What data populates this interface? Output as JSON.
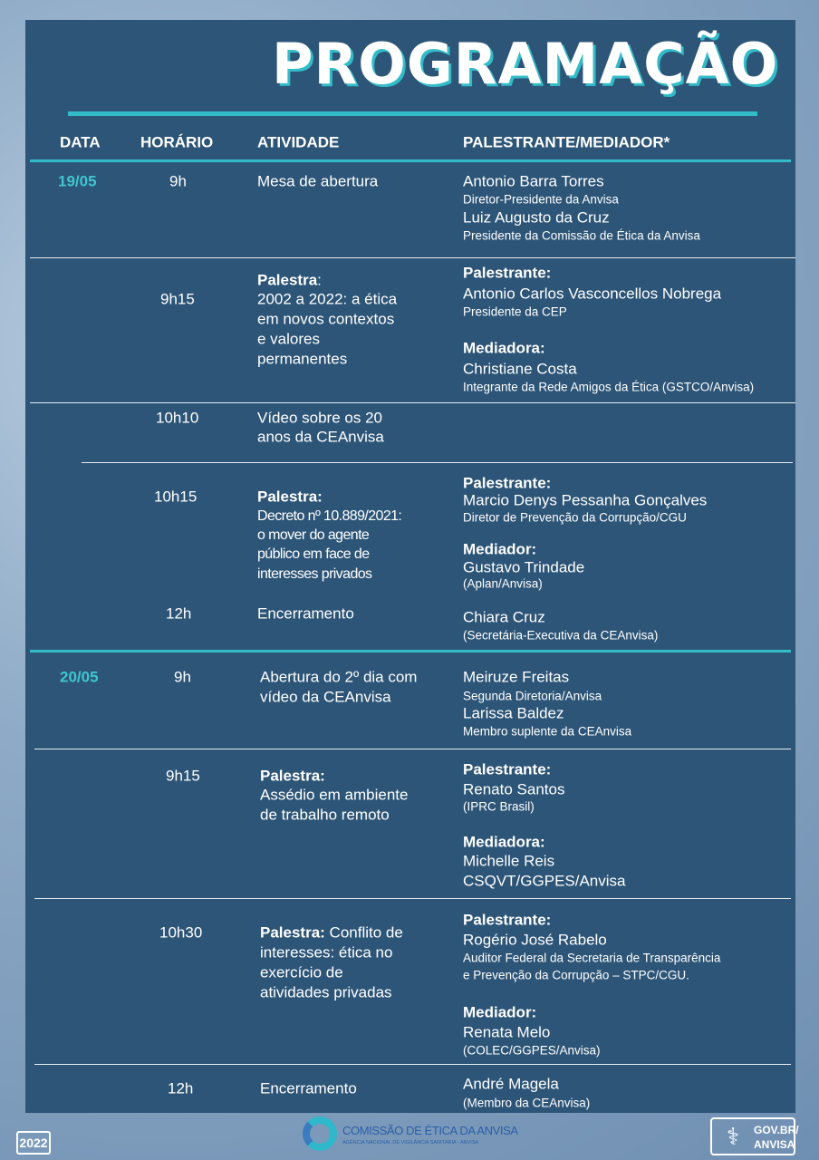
{
  "title": "PROGRAMAÇÃO",
  "headers": {
    "date": "DATA",
    "time": "HORÁRIO",
    "activity": "ATIVIDADE",
    "speaker": "PALESTRANTE/MEDIADOR*"
  },
  "day1": {
    "date": "19/05",
    "r1": {
      "time": "9h",
      "activity": "Mesa de abertura",
      "s1": "Antonio Barra Torres",
      "s1r": "Diretor-Presidente da Anvisa",
      "s2": "Luiz Augusto da Cruz",
      "s2r": "Presidente da Comissão de Ética da Anvisa"
    },
    "r2": {
      "time": "9h15",
      "label": "Palestra",
      "colon": ":",
      "a1": "2002 a 2022: a ética",
      "a2": "em novos contextos",
      "a3": "e valores",
      "a4": "permanentes",
      "p": "Palestrante:",
      "s1": "Antonio Carlos Vasconcellos Nobrega",
      "s1r": "Presidente da CEP",
      "m": "Mediadora:",
      "s2": "Christiane Costa",
      "s2r": "Integrante da Rede Amigos da Ética (GSTCO/Anvisa)"
    },
    "r3": {
      "time": "10h10",
      "a1": "Vídeo sobre os 20",
      "a2": "anos da CEAnvisa"
    },
    "r4": {
      "time": "10h15",
      "label": "Palestra:",
      "a1": "Decreto nº 10.889/2021:",
      "a2": "o mover do agente",
      "a3": "público em face de",
      "a4": "interesses privados",
      "p": "Palestrante:",
      "s1": "Marcio Denys Pessanha Gonçalves",
      "s1r": "Diretor de Prevenção da Corrupção/CGU",
      "m": "Mediador:",
      "s2": "Gustavo Trindade",
      "s2r": "(Aplan/Anvisa)"
    },
    "r5": {
      "time": "12h",
      "activity": "Encerramento",
      "s1": "Chiara Cruz",
      "s1r": "(Secretária-Executiva da CEAnvisa)"
    }
  },
  "day2": {
    "date": "20/05",
    "r1": {
      "time": "9h",
      "a1": "Abertura do 2º dia com",
      "a2": "vídeo da CEAnvisa",
      "s1": "Meiruze Freitas",
      "s1r": "Segunda Diretoria/Anvisa",
      "s2": "Larissa Baldez",
      "s2r": "Membro suplente da CEAnvisa"
    },
    "r2": {
      "time": "9h15",
      "label": "Palestra:",
      "a1": "Assédio em ambiente",
      "a2": "de trabalho remoto",
      "p": "Palestrante:",
      "s1": "Renato Santos",
      "s1r": "(IPRC Brasil)",
      "m": "Mediadora:",
      "s2": "Michelle Reis",
      "s2b": "CSQVT/GGPES/Anvisa"
    },
    "r3": {
      "time": "10h30",
      "label": "Palestra:",
      "a0": " Conflito de",
      "a1": "interesses: ética no",
      "a2": "exercício de",
      "a3": "atividades privadas",
      "p": "Palestrante:",
      "s1": "Rogério José Rabelo",
      "s1r": "Auditor Federal da Secretaria de Transparência",
      "s1r2": "e Prevenção da Corrupção – STPC/CGU.",
      "m": "Mediador:",
      "s2": "Renata Melo",
      "s2r": "(COLEC/GGPES/Anvisa)"
    },
    "r4": {
      "time": "12h",
      "activity": "Encerramento",
      "s1": "André Magela",
      "s1r": "(Membro da CEAnvisa)"
    }
  },
  "footer": {
    "year": "2022",
    "logo_title": "COMISSÃO DE ÉTICA DA ANVISA",
    "logo_sub": "AGÊNCIA NACIONAL DE VIGILÂNCIA SANITÁRIA - ANVISA",
    "gov1": "GOV.BR/",
    "gov2": "ANVISA"
  },
  "colors": {
    "panel": "#2d5577",
    "accent": "#33bcc8"
  }
}
